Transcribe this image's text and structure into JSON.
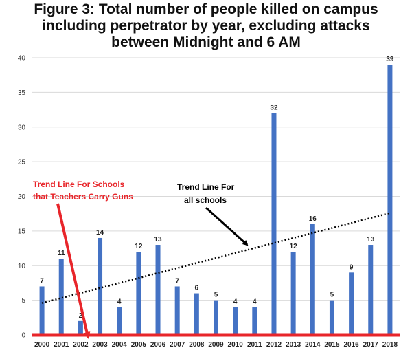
{
  "chart_data": {
    "type": "bar",
    "title_lines": [
      "Figure 3: Total number of people killed on campus",
      "including perpetrator by year, excluding attacks",
      "between Midnight and 6 AM"
    ],
    "categories": [
      "2000",
      "2001",
      "2002",
      "2003",
      "2004",
      "2005",
      "2006",
      "2007",
      "2008",
      "2009",
      "2010",
      "2011",
      "2012",
      "2013",
      "2014",
      "2015",
      "2016",
      "2017",
      "2018"
    ],
    "values": [
      7,
      11,
      2,
      14,
      4,
      12,
      13,
      7,
      6,
      5,
      4,
      4,
      32,
      12,
      16,
      5,
      9,
      13,
      39
    ],
    "ylim": [
      0,
      40
    ],
    "yticks": [
      0,
      5,
      10,
      15,
      20,
      25,
      30,
      35,
      40
    ],
    "grid": true,
    "colors": {
      "bar": "#4472c4",
      "grid": "#d9d9d9",
      "teacher_trend": "#e8252a",
      "all_trend": "#000000"
    },
    "trend_all": {
      "start": 4.6,
      "end": 17.6
    },
    "trend_teachers": {
      "value": 0
    },
    "annotations": {
      "teachers": [
        "Trend Line For Schools",
        "that Teachers Carry Guns"
      ],
      "all": [
        "Trend Line For",
        "all schools"
      ]
    }
  }
}
